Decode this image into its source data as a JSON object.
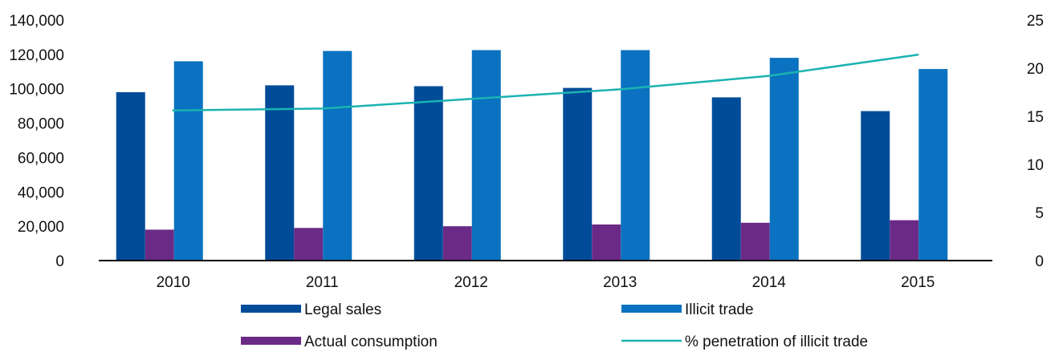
{
  "chart_data": {
    "type": "bar",
    "categories": [
      "2010",
      "2011",
      "2012",
      "2013",
      "2014",
      "2015"
    ],
    "series": [
      {
        "name": "Legal sales",
        "type": "bar",
        "axis": "left",
        "color": "#004c99",
        "values": [
          98000,
          102000,
          101500,
          100500,
          95000,
          87000
        ]
      },
      {
        "name": "Actual consumption",
        "type": "bar",
        "axis": "left",
        "color": "#6b2a86",
        "values": [
          18000,
          19000,
          20000,
          21000,
          22000,
          23500
        ]
      },
      {
        "name": "Illicit trade",
        "type": "bar",
        "axis": "left",
        "color": "#0a72c0",
        "values": [
          116000,
          122000,
          122500,
          122500,
          118000,
          111500
        ]
      },
      {
        "name": "% penetration of illicit trade",
        "type": "line",
        "axis": "right",
        "color": "#1bb3b0",
        "values": [
          15.6,
          15.8,
          16.8,
          17.8,
          19.2,
          21.4
        ]
      }
    ],
    "y_left": {
      "min": 0,
      "max": 140000,
      "ticks": [
        0,
        20000,
        40000,
        60000,
        80000,
        100000,
        120000,
        140000
      ],
      "tick_labels": [
        "0",
        "20,000",
        "40,000",
        "60,000",
        "80,000",
        "100,000",
        "120,000",
        "140,000"
      ]
    },
    "y_right": {
      "min": 0,
      "max": 25,
      "ticks": [
        0,
        5,
        10,
        15,
        20,
        25
      ],
      "tick_labels": [
        "0",
        "5",
        "10",
        "15",
        "20",
        "25"
      ]
    },
    "grid": false,
    "legend_position": "bottom"
  }
}
